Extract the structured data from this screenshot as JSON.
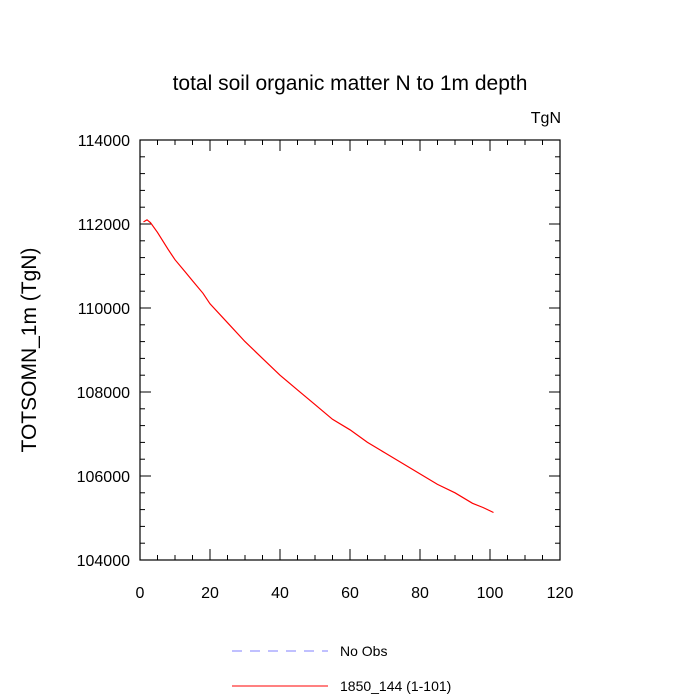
{
  "chart_data": {
    "type": "line",
    "title": "total soil organic matter N to 1m depth",
    "units": "TgN",
    "xlabel": "",
    "ylabel": "TOTSOMN_1m  (TgN)",
    "xlim": [
      0,
      120
    ],
    "ylim": [
      104000,
      114000
    ],
    "x_ticks": [
      "0",
      "20",
      "40",
      "60",
      "80",
      "100",
      "120"
    ],
    "y_ticks": [
      "104000",
      "106000",
      "108000",
      "110000",
      "112000",
      "114000"
    ],
    "series": [
      {
        "name": "No Obs",
        "color": "#8080ff",
        "dash": true,
        "x": [],
        "y": []
      },
      {
        "name": "1850_144 (1-101)",
        "color": "#ff0000",
        "dash": false,
        "x": [
          1,
          2,
          3,
          5,
          8,
          10,
          13,
          15,
          18,
          20,
          25,
          30,
          35,
          40,
          45,
          50,
          55,
          60,
          65,
          70,
          75,
          80,
          85,
          90,
          95,
          98,
          101
        ],
        "y": [
          112050,
          112100,
          112030,
          111800,
          111400,
          111150,
          110850,
          110650,
          110350,
          110100,
          109650,
          109200,
          108800,
          108400,
          108050,
          107700,
          107350,
          107100,
          106800,
          106550,
          106300,
          106050,
          105800,
          105600,
          105350,
          105250,
          105130
        ]
      }
    ],
    "legend": [
      {
        "label": "No Obs",
        "color": "#8080ff",
        "dash": true
      },
      {
        "label": "1850_144 (1-101)",
        "color": "#ff0000",
        "dash": false
      }
    ]
  }
}
